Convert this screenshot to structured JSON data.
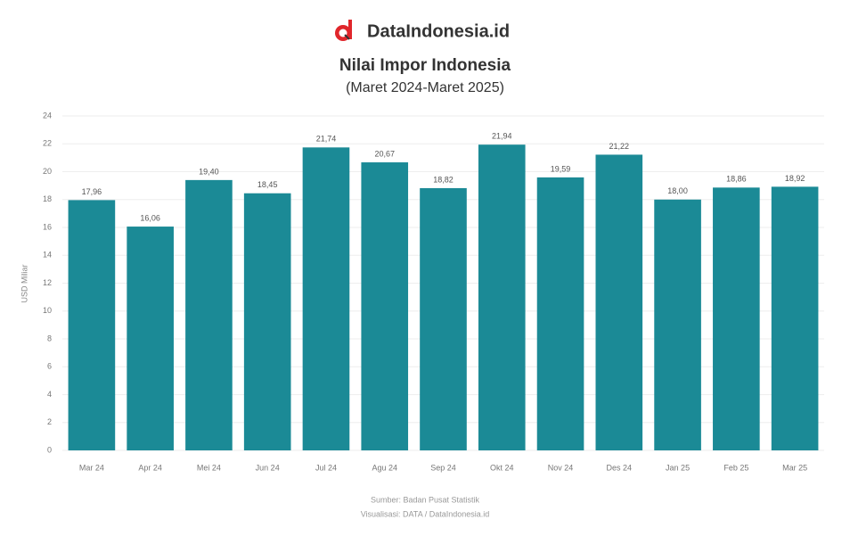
{
  "brand": "DataIndonesia.id",
  "chart_data": {
    "type": "bar",
    "title": "Nilai Impor Indonesia",
    "subtitle": "(Maret 2024-Maret 2025)",
    "y_label": "USD Miliar",
    "source": "Sumber: Badan Pusat Statistik",
    "credit": "Visualisasi: DATA / DataIndonesia.id",
    "categories": [
      "Mar 24",
      "Apr 24",
      "Mei 24",
      "Jun 24",
      "Jul 24",
      "Agu 24",
      "Sep 24",
      "Okt 24",
      "Nov 24",
      "Des 24",
      "Jan 25",
      "Feb 25",
      "Mar 25"
    ],
    "values": [
      17.96,
      16.06,
      19.4,
      18.45,
      21.74,
      20.67,
      18.82,
      21.94,
      19.59,
      21.22,
      18.0,
      18.86,
      18.92
    ],
    "value_labels": [
      "17,96",
      "16,06",
      "19,40",
      "18,45",
      "21,74",
      "20,67",
      "18,82",
      "21,94",
      "19,59",
      "21,22",
      "18,00",
      "18,86",
      "18,92"
    ],
    "color": "#1b8a96",
    "ylim": [
      0,
      24
    ],
    "yticks": [
      0,
      2,
      4,
      6,
      8,
      10,
      12,
      14,
      16,
      18,
      20,
      22,
      24
    ],
    "grid": true
  }
}
